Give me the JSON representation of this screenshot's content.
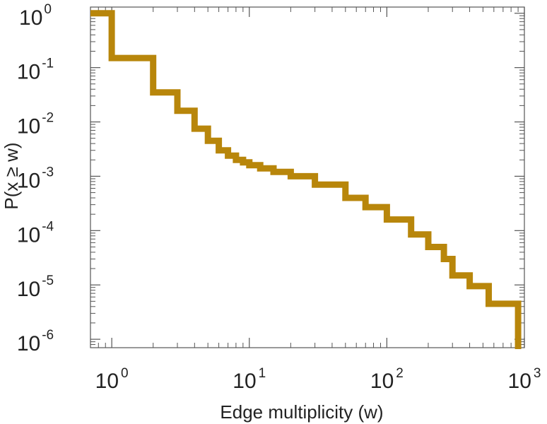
{
  "chart_data": {
    "type": "line",
    "step": true,
    "title": "",
    "xlabel": "Edge multiplicity (w)",
    "ylabel": "P(x ≥ w)",
    "xscale": "log",
    "yscale": "log",
    "xlim": [
      0.7,
      1000
    ],
    "ylim": [
      7e-07,
      1.3
    ],
    "grid": false,
    "legend": "none",
    "x_ticks": [
      {
        "value": 1,
        "base": "10",
        "exp": "0"
      },
      {
        "value": 10,
        "base": "10",
        "exp": "1"
      },
      {
        "value": 100,
        "base": "10",
        "exp": "2"
      },
      {
        "value": 1000,
        "base": "10",
        "exp": "3"
      }
    ],
    "y_ticks": [
      {
        "value": 1,
        "base": "10",
        "exp": "0"
      },
      {
        "value": 0.1,
        "base": "10",
        "exp": "-1"
      },
      {
        "value": 0.01,
        "base": "10",
        "exp": "-2"
      },
      {
        "value": 0.001,
        "base": "10",
        "exp": "-3"
      },
      {
        "value": 0.0001,
        "base": "10",
        "exp": "-4"
      },
      {
        "value": 1e-05,
        "base": "10",
        "exp": "-5"
      },
      {
        "value": 1e-06,
        "base": "10",
        "exp": "-6"
      }
    ],
    "series": [
      {
        "color": "#b8860b",
        "x": [
          0.7,
          1,
          2,
          3,
          4,
          5,
          6,
          7,
          8,
          9,
          10,
          12,
          15,
          20,
          30,
          50,
          70,
          100,
          150,
          200,
          260,
          300,
          400,
          550,
          880,
          900
        ],
        "y": [
          1,
          0.15,
          0.035,
          0.016,
          0.0075,
          0.0045,
          0.003,
          0.0024,
          0.002,
          0.0018,
          0.0016,
          0.0014,
          0.0012,
          0.001,
          0.0007,
          0.0004,
          0.00027,
          0.00016,
          8.5e-05,
          5e-05,
          3e-05,
          1.5e-05,
          9.5e-06,
          4.5e-06,
          4.5e-06,
          7e-07
        ]
      }
    ]
  }
}
